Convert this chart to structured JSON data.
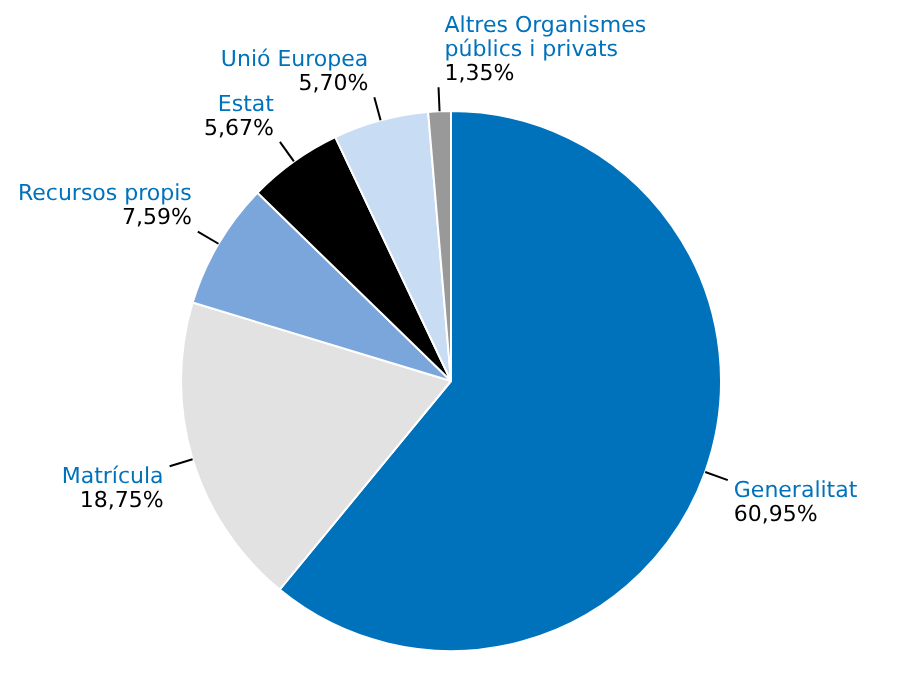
{
  "chart_data": {
    "type": "pie",
    "categories": [
      "Generalitat",
      "Matrícula",
      "Recursos propis",
      "Estat",
      "Unió Europea",
      "Altres Organismes públics i privats"
    ],
    "values": [
      60.95,
      18.75,
      7.59,
      5.67,
      5.7,
      1.35
    ],
    "value_labels": [
      "60,95%",
      "18,75%",
      "7,59%",
      "5,67%",
      "5,70%",
      "1,35%"
    ],
    "colors": [
      "#0072bc",
      "#e2e2e2",
      "#7aa6dc",
      "#000000",
      "#c8dcf3",
      "#999999"
    ]
  }
}
